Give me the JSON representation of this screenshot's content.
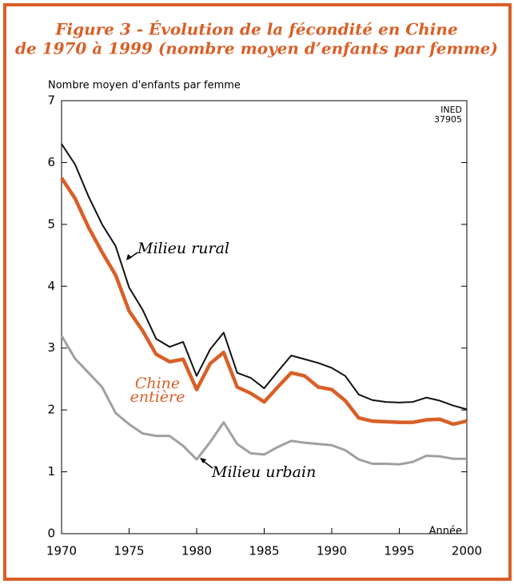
{
  "chart_data": {
    "type": "line",
    "title": [
      "Figure 3 - Évolution de la fécondité en Chine",
      "de 1970 à 1999 (nombre moyen d’enfants par femme)"
    ],
    "y_label": "Nombre moyen d'enfants par femme",
    "x_label": "Année",
    "annotations": [
      "INED",
      "37905"
    ],
    "x": [
      1970,
      1971,
      1972,
      1973,
      1974,
      1975,
      1976,
      1977,
      1978,
      1979,
      1980,
      1981,
      1982,
      1983,
      1984,
      1985,
      1986,
      1987,
      1988,
      1989,
      1990,
      1991,
      1992,
      1993,
      1994,
      1995,
      1996,
      1997,
      1998,
      1999,
      2000
    ],
    "series": [
      {
        "name": "Milieu rural",
        "color": "#111111",
        "width": 2,
        "values": [
          6.3,
          5.97,
          5.45,
          5.0,
          4.65,
          3.98,
          3.62,
          3.15,
          3.02,
          3.1,
          2.55,
          2.98,
          3.25,
          2.6,
          2.52,
          2.35,
          2.62,
          2.88,
          2.82,
          2.76,
          2.68,
          2.55,
          2.25,
          2.16,
          2.13,
          2.12,
          2.13,
          2.2,
          2.15,
          2.07,
          2.01
        ]
      },
      {
        "name": "Chine entière",
        "color": "#d95f27",
        "width": 4.5,
        "values": [
          5.75,
          5.42,
          4.95,
          4.55,
          4.18,
          3.6,
          3.28,
          2.9,
          2.78,
          2.82,
          2.33,
          2.75,
          2.93,
          2.37,
          2.27,
          2.13,
          2.37,
          2.6,
          2.55,
          2.37,
          2.33,
          2.15,
          1.87,
          1.82,
          1.81,
          1.8,
          1.8,
          1.84,
          1.85,
          1.77,
          1.82
        ]
      },
      {
        "name": "Milieu urbain",
        "color": "#a0a0a0",
        "width": 3,
        "values": [
          3.2,
          2.83,
          2.6,
          2.37,
          1.95,
          1.77,
          1.62,
          1.58,
          1.58,
          1.42,
          1.2,
          1.48,
          1.8,
          1.45,
          1.3,
          1.28,
          1.4,
          1.5,
          1.47,
          1.45,
          1.43,
          1.35,
          1.2,
          1.13,
          1.13,
          1.12,
          1.16,
          1.26,
          1.25,
          1.21,
          1.21
        ]
      }
    ],
    "xlim": [
      1970,
      2000
    ],
    "xticks": [
      1970,
      1975,
      1980,
      1985,
      1990,
      1995,
      2000
    ],
    "ylim": [
      0,
      7
    ],
    "yticks": [
      0,
      1,
      2,
      3,
      4,
      5,
      6,
      7
    ]
  }
}
